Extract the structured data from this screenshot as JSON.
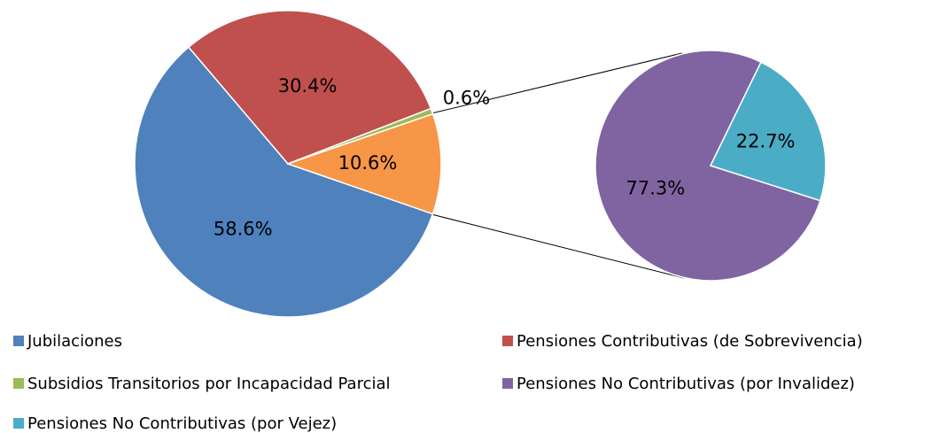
{
  "chart_data": [
    {
      "type": "pie",
      "categories": [
        "Jubilaciones",
        "Pensiones Contributivas (de Sobrevivencia)",
        "Subsidios Transitorios por Incapacidad Parcial",
        null
      ],
      "values": [
        58.6,
        30.4,
        0.6,
        10.6
      ],
      "value_labels": [
        "58.6%",
        "30.4%",
        "0.6%",
        "10.6%"
      ],
      "colors": [
        "#4f81bd",
        "#c0504d",
        "#9bbb59",
        "#f79646"
      ],
      "legend": true
    },
    {
      "type": "pie",
      "categories": [
        "Pensiones No Contributivas (por Invalidez)",
        "Pensiones No Contributivas (por Vejez)"
      ],
      "values": [
        77.3,
        22.7
      ],
      "value_labels": [
        "77.3%",
        "22.7%"
      ],
      "colors": [
        "#8064a2",
        "#4bacc6"
      ],
      "legend": true
    }
  ]
}
